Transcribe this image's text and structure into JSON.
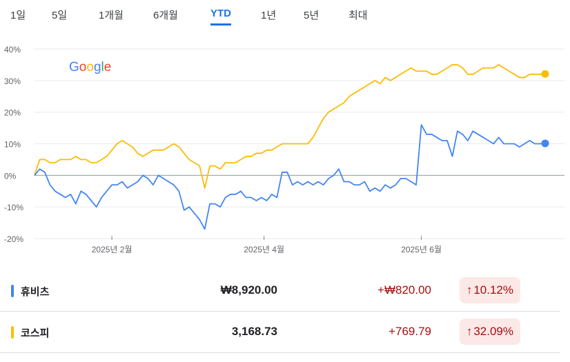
{
  "tabs": [
    {
      "label": "1일"
    },
    {
      "label": "5일"
    },
    {
      "label": "1개월"
    },
    {
      "label": "6개월"
    },
    {
      "label": "YTD",
      "active": true
    },
    {
      "label": "1년"
    },
    {
      "label": "5년"
    },
    {
      "label": "최대"
    }
  ],
  "logo_text": "Google",
  "colors": {
    "accent": "#1a73e8",
    "series1": "#4285f4",
    "series2": "#fbbc04",
    "up": "#a50e0e",
    "up_bg": "#fce8e6"
  },
  "chart_data": {
    "type": "line",
    "ylim": [
      -20,
      40
    ],
    "yticks": [
      "40%",
      "30%",
      "20%",
      "10%",
      "0%",
      "-10%",
      "-20%"
    ],
    "ytick_values": [
      40,
      30,
      20,
      10,
      0,
      -10,
      -20
    ],
    "xticks": [
      {
        "label": "2025년 2월",
        "x": "2025-02-01"
      },
      {
        "label": "2025년 4월",
        "x": "2025-04-01"
      },
      {
        "label": "2025년 6월",
        "x": "2025-06-01"
      }
    ],
    "x": [
      "2025-01-02",
      "2025-01-04",
      "2025-01-06",
      "2025-01-08",
      "2025-01-10",
      "2025-01-12",
      "2025-01-14",
      "2025-01-16",
      "2025-01-18",
      "2025-01-20",
      "2025-01-22",
      "2025-01-24",
      "2025-01-26",
      "2025-01-28",
      "2025-01-30",
      "2025-02-01",
      "2025-02-03",
      "2025-02-05",
      "2025-02-07",
      "2025-02-09",
      "2025-02-11",
      "2025-02-13",
      "2025-02-15",
      "2025-02-17",
      "2025-02-19",
      "2025-02-21",
      "2025-02-23",
      "2025-02-25",
      "2025-02-27",
      "2025-03-01",
      "2025-03-03",
      "2025-03-05",
      "2025-03-07",
      "2025-03-09",
      "2025-03-11",
      "2025-03-13",
      "2025-03-15",
      "2025-03-17",
      "2025-03-19",
      "2025-03-21",
      "2025-03-23",
      "2025-03-25",
      "2025-03-27",
      "2025-03-29",
      "2025-03-31",
      "2025-04-02",
      "2025-04-04",
      "2025-04-06",
      "2025-04-08",
      "2025-04-10",
      "2025-04-12",
      "2025-04-14",
      "2025-04-16",
      "2025-04-18",
      "2025-04-20",
      "2025-04-22",
      "2025-04-24",
      "2025-04-26",
      "2025-04-28",
      "2025-04-30",
      "2025-05-02",
      "2025-05-04",
      "2025-05-06",
      "2025-05-08",
      "2025-05-10",
      "2025-05-12",
      "2025-05-14",
      "2025-05-16",
      "2025-05-18",
      "2025-05-20",
      "2025-05-22",
      "2025-05-24",
      "2025-05-26",
      "2025-05-28",
      "2025-05-30",
      "2025-06-01",
      "2025-06-03",
      "2025-06-05",
      "2025-06-07",
      "2025-06-09",
      "2025-06-11",
      "2025-06-13",
      "2025-06-15",
      "2025-06-17",
      "2025-06-19",
      "2025-06-21",
      "2025-06-23",
      "2025-06-25",
      "2025-06-27",
      "2025-06-29",
      "2025-07-01",
      "2025-07-03",
      "2025-07-05",
      "2025-07-07",
      "2025-07-09",
      "2025-07-11",
      "2025-07-13",
      "2025-07-15",
      "2025-07-17",
      "2025-07-19"
    ],
    "series": [
      {
        "name": "휴비츠",
        "values": [
          0,
          2,
          1,
          -3,
          -5,
          -6,
          -7,
          -6,
          -9,
          -5,
          -6,
          -8,
          -10,
          -7,
          -5,
          -3,
          -3,
          -2,
          -4,
          -3,
          -2,
          0,
          -1,
          -3,
          0,
          -1,
          -2,
          -3,
          -5,
          -11,
          -10,
          -12,
          -14,
          -17,
          -9,
          -9,
          -10,
          -7,
          -6,
          -6,
          -5,
          -7,
          -7,
          -8,
          -7,
          -8,
          -6,
          -7,
          1,
          1,
          -3,
          -2,
          -3,
          -2,
          -3,
          -2,
          -3,
          -1,
          0,
          2,
          -2,
          -2,
          -3,
          -3,
          -2,
          -5,
          -4,
          -5,
          -3,
          -4,
          -3,
          -1,
          -1,
          -2,
          -3,
          16,
          13,
          13,
          12,
          11,
          11,
          6,
          14,
          13,
          11,
          14,
          13,
          12,
          11,
          10,
          12,
          10,
          10,
          10,
          9,
          10,
          11,
          10,
          10,
          10.12
        ]
      },
      {
        "name": "코스피",
        "values": [
          0,
          5,
          5,
          4,
          4,
          5,
          5,
          5,
          6,
          5,
          5,
          4,
          4,
          5,
          6,
          8,
          10,
          11,
          10,
          9,
          7,
          6,
          7,
          8,
          8,
          8,
          9,
          10,
          9,
          7,
          5,
          4,
          3,
          -4,
          3,
          3,
          2,
          4,
          4,
          4,
          5,
          6,
          6,
          7,
          7,
          8,
          8,
          9,
          10,
          10,
          10,
          10,
          10,
          10,
          12,
          15,
          18,
          20,
          21,
          22,
          23,
          25,
          26,
          27,
          28,
          29,
          30,
          29,
          31,
          30,
          31,
          32,
          33,
          34,
          33,
          33,
          33,
          32,
          32,
          33,
          34,
          35,
          35,
          34,
          32,
          32,
          33,
          34,
          34,
          34,
          35,
          34,
          33,
          32,
          31,
          31,
          32,
          32,
          32,
          32.09
        ]
      }
    ]
  },
  "rows": [
    {
      "name": "휴비츠",
      "price": "₩8,920.00",
      "change": "+₩820.00",
      "pct": "10.12%",
      "color": "#4285f4"
    },
    {
      "name": "코스피",
      "price": "3,168.73",
      "change": "+769.79",
      "pct": "32.09%",
      "color": "#fbbc04"
    }
  ]
}
